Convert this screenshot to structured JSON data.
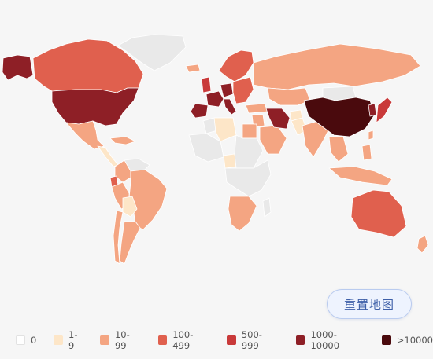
{
  "map": {
    "legend": [
      {
        "label": "0",
        "color": "#ffffff"
      },
      {
        "label": "1-9",
        "color": "#fde6c8"
      },
      {
        "label": "10-99",
        "color": "#f4a582"
      },
      {
        "label": "100-499",
        "color": "#e0604e"
      },
      {
        "label": "500-999",
        "color": "#c93a3a"
      },
      {
        "label": "1000-10000",
        "color": "#8e1f26"
      },
      {
        "label": ">10000",
        "color": "#4a0a0d"
      }
    ],
    "no_data_color": "#e9e9e9",
    "regions": [
      {
        "name": "Alaska",
        "bucket": 5
      },
      {
        "name": "Canada",
        "bucket": 3
      },
      {
        "name": "Greenland",
        "bucket": -1
      },
      {
        "name": "United States",
        "bucket": 5
      },
      {
        "name": "Mexico",
        "bucket": 2
      },
      {
        "name": "Central America",
        "bucket": 1
      },
      {
        "name": "Caribbean",
        "bucket": 2
      },
      {
        "name": "Colombia",
        "bucket": 2
      },
      {
        "name": "Venezuela",
        "bucket": -1
      },
      {
        "name": "Ecuador",
        "bucket": 3
      },
      {
        "name": "Peru",
        "bucket": 2
      },
      {
        "name": "Brazil",
        "bucket": 2
      },
      {
        "name": "Bolivia",
        "bucket": 1
      },
      {
        "name": "Argentina",
        "bucket": 2
      },
      {
        "name": "Chile",
        "bucket": 2
      },
      {
        "name": "Iceland",
        "bucket": 2
      },
      {
        "name": "Scandinavia",
        "bucket": 3
      },
      {
        "name": "United Kingdom",
        "bucket": 4
      },
      {
        "name": "France",
        "bucket": 5
      },
      {
        "name": "Spain",
        "bucket": 5
      },
      {
        "name": "Germany",
        "bucket": 5
      },
      {
        "name": "Italy",
        "bucket": 5
      },
      {
        "name": "Eastern Europe",
        "bucket": 3
      },
      {
        "name": "Russia",
        "bucket": 2
      },
      {
        "name": "Kazakhstan",
        "bucket": 2
      },
      {
        "name": "Mongolia",
        "bucket": -1
      },
      {
        "name": "Turkey",
        "bucket": 2
      },
      {
        "name": "Middle East",
        "bucket": 2
      },
      {
        "name": "Arabia",
        "bucket": 2
      },
      {
        "name": "Iran",
        "bucket": 5
      },
      {
        "name": "Afghanistan",
        "bucket": 1
      },
      {
        "name": "Pakistan",
        "bucket": 1
      },
      {
        "name": "India",
        "bucket": 2
      },
      {
        "name": "China",
        "bucket": 6
      },
      {
        "name": "Korea",
        "bucket": 5
      },
      {
        "name": "Japan",
        "bucket": 4
      },
      {
        "name": "Southeast Asia",
        "bucket": 2
      },
      {
        "name": "Indonesia",
        "bucket": 2
      },
      {
        "name": "Philippines",
        "bucket": 2
      },
      {
        "name": "Taiwan",
        "bucket": 2
      },
      {
        "name": "Australia",
        "bucket": 3
      },
      {
        "name": "New Zealand",
        "bucket": 2
      },
      {
        "name": "North Africa",
        "bucket": -1
      },
      {
        "name": "Egypt",
        "bucket": 2
      },
      {
        "name": "Algeria",
        "bucket": 1
      },
      {
        "name": "West Africa",
        "bucket": -1
      },
      {
        "name": "Nigeria",
        "bucket": 1
      },
      {
        "name": "Central Africa",
        "bucket": -1
      },
      {
        "name": "East Africa",
        "bucket": -1
      },
      {
        "name": "Southern Africa",
        "bucket": 2
      },
      {
        "name": "Madagascar",
        "bucket": -1
      }
    ]
  },
  "reset_button": {
    "label": "重置地图"
  }
}
